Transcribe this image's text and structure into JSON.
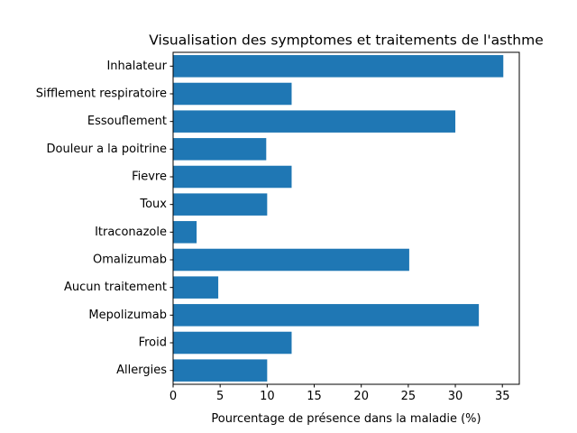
{
  "chart_data": {
    "type": "bar",
    "orientation": "horizontal",
    "title": "Visualisation des symptomes et traitements de l'asthme",
    "xlabel": "Pourcentage de présence dans la maladie (%)",
    "ylabel": "",
    "categories": [
      "Allergies",
      "Froid",
      "Mepolizumab",
      "Aucun traitement",
      "Omalizumab",
      "Itraconazole",
      "Toux",
      "Fievre",
      "Douleur a la poitrine",
      "Essouflement",
      "Sifflement respiratoire",
      "Inhalateur"
    ],
    "values": [
      10.0,
      12.6,
      32.5,
      4.8,
      25.1,
      2.5,
      10.0,
      12.6,
      9.9,
      30.0,
      12.6,
      35.1
    ],
    "xlim": [
      0,
      36.8
    ],
    "xticks": [
      "0",
      "5",
      "10",
      "15",
      "20",
      "25",
      "30",
      "35"
    ],
    "grid": false,
    "bar_color": "#1f77b4"
  }
}
